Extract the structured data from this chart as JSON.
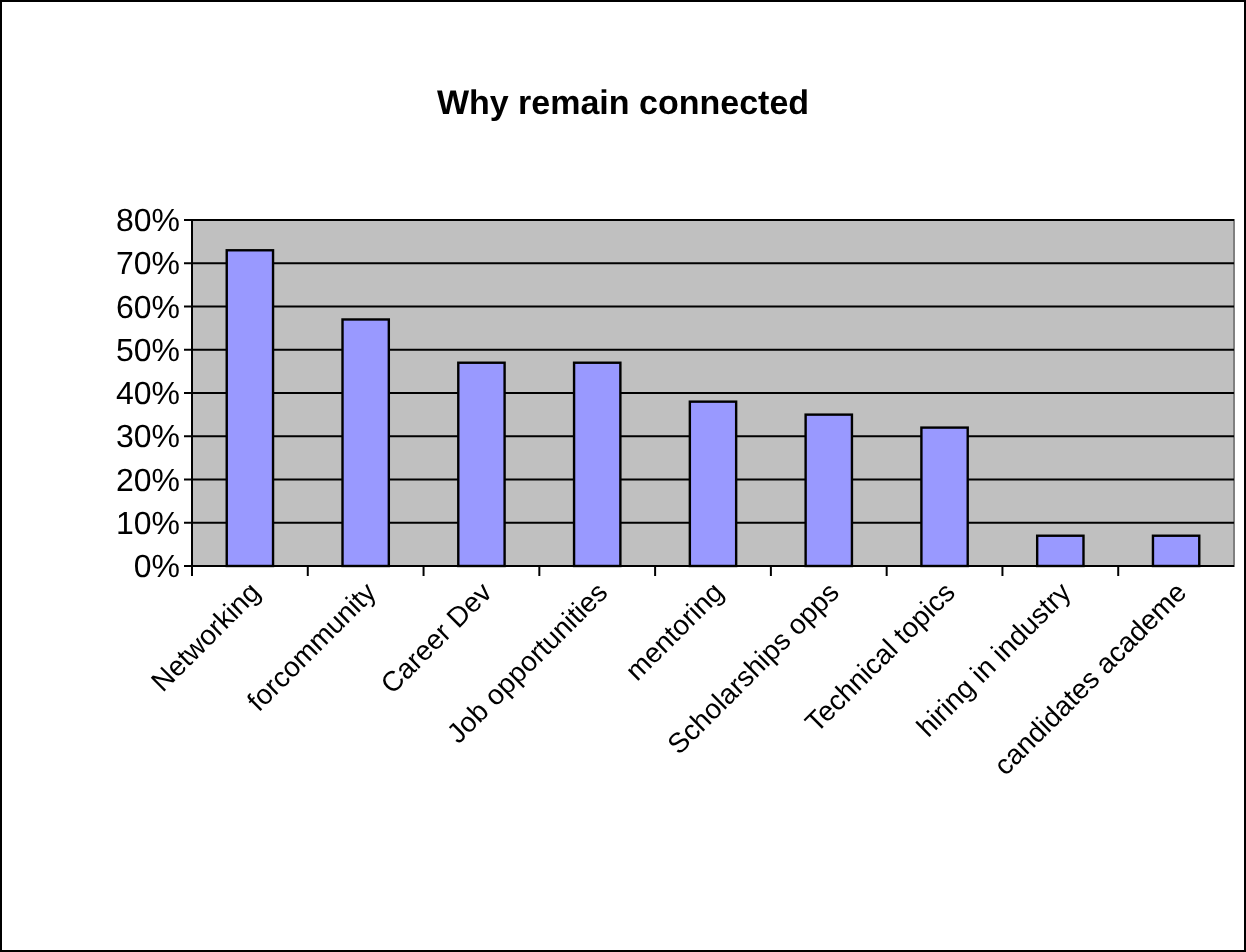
{
  "chart_data": {
    "type": "bar",
    "title": "Why remain connected",
    "categories": [
      "Networking",
      "forcommunity",
      "Career Dev",
      "Job opportunities",
      "mentoring",
      "Scholarships opps",
      "Technical topics",
      "hiring in industry",
      "candidates academe"
    ],
    "values": [
      73,
      57,
      47,
      47,
      38,
      35,
      32,
      7,
      7
    ],
    "color": "#9999ff",
    "ylim": [
      0,
      80
    ],
    "yticks": [
      {
        "value": 0,
        "label": "0%"
      },
      {
        "value": 10,
        "label": "10%"
      },
      {
        "value": 20,
        "label": "20%"
      },
      {
        "value": 30,
        "label": "30%"
      },
      {
        "value": 40,
        "label": "40%"
      },
      {
        "value": 50,
        "label": "50%"
      },
      {
        "value": 60,
        "label": "60%"
      },
      {
        "value": 70,
        "label": "70%"
      },
      {
        "value": 80,
        "label": "80%"
      }
    ],
    "grid": "y"
  }
}
